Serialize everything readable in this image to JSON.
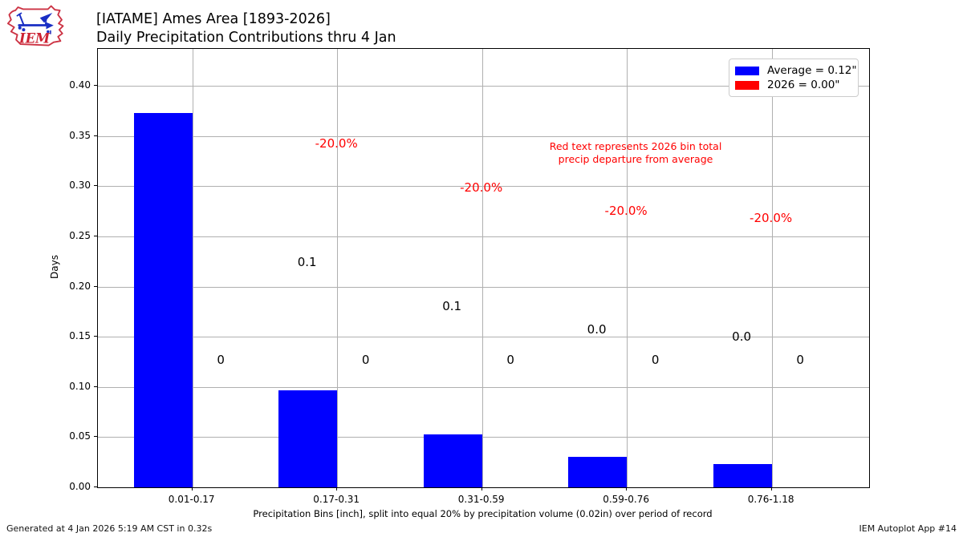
{
  "branding": {
    "logo_text": "IEM",
    "footer_left": "Generated at 4 Jan 2026 5:19 AM CST in 0.32s",
    "footer_right": "IEM Autoplot App #14"
  },
  "chart_data": {
    "type": "bar",
    "title_line1": "[IATAME] Ames Area [1893-2026]",
    "title_line2": "Daily Precipitation Contributions thru 4 Jan",
    "ylabel": "Days",
    "xlabel": "Precipitation Bins [inch], split into equal 20% by precipitation volume (0.02in) over period of record",
    "categories": [
      "0.01-0.17",
      "0.17-0.31",
      "0.31-0.59",
      "0.59-0.76",
      "0.76-1.18"
    ],
    "series": [
      {
        "name": "Average = 0.12\"",
        "color": "#0000ff",
        "values": [
          0.373,
          0.097,
          0.053,
          0.03,
          0.023
        ],
        "bar_labels": [
          "",
          "0.1",
          "0.1",
          "0.0",
          "0.0"
        ]
      },
      {
        "name": "2026 = 0.00\"",
        "color": "#ff0000",
        "values": [
          0,
          0,
          0,
          0,
          0
        ],
        "bar_labels": [
          "0",
          "0",
          "0",
          "0",
          "0"
        ]
      }
    ],
    "departure_labels": [
      "",
      "-20.0%",
      "-20.0%",
      "-20.0%",
      "-20.0%"
    ],
    "annotation_note": [
      "Red text represents 2026 bin total",
      "precip departure from average"
    ],
    "ylim": [
      0,
      0.4368
    ],
    "yticks": [
      0.0,
      0.05,
      0.1,
      0.15,
      0.2,
      0.25,
      0.3,
      0.35,
      0.4
    ],
    "ytick_labels": [
      "0.00",
      "0.05",
      "0.10",
      "0.15",
      "0.20",
      "0.25",
      "0.30",
      "0.35",
      "0.40"
    ],
    "grid": true,
    "legend_position": "upper right",
    "colors": {
      "grid": "#b0b0b0",
      "axis": "#000000",
      "annotation_red": "#ff0000",
      "average_bar": "#0000ff",
      "year_bar": "#ff0000"
    }
  }
}
